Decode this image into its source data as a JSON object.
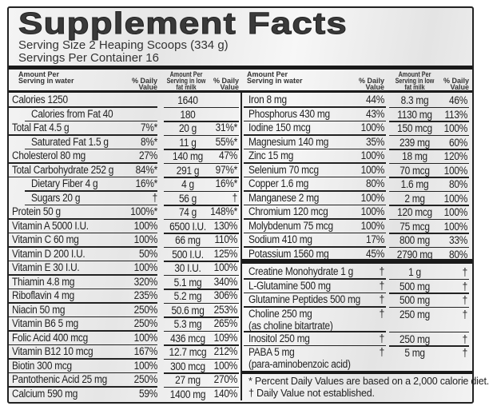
{
  "title": "Supplement Facts",
  "serving_size": "Serving Size 2 Heaping Scoops (334 g)",
  "servings_per_container": "Servings Per Container 16",
  "headers": {
    "amount_water": "Amount Per Serving in water",
    "daily_value": "% Daily Value",
    "amount_milk": "Amount Per Serving in low fat milk"
  },
  "left_rows": [
    {
      "name": "Calories  1250",
      "dv": "",
      "milk": "1640",
      "milk_dv": "",
      "indent": false
    },
    {
      "name": "Calories from Fat  40",
      "dv": "",
      "milk": "180",
      "milk_dv": "",
      "indent": true
    },
    {
      "name": "Total Fat  4.5 g",
      "dv": "7%*",
      "milk": "20 g",
      "milk_dv": "31%*",
      "indent": false
    },
    {
      "name": "Saturated Fat  1.5 g",
      "dv": "8%*",
      "milk": "11 g",
      "milk_dv": "55%*",
      "indent": true
    },
    {
      "name": "Cholesterol  80 mg",
      "dv": "27%",
      "milk": "140 mg",
      "milk_dv": "47%",
      "indent": false
    },
    {
      "name": "Total Carbohydrate  252 g",
      "dv": "84%*",
      "milk": "291 g",
      "milk_dv": "97%*",
      "indent": false
    },
    {
      "name": "Dietary Fiber  4 g",
      "dv": "16%*",
      "milk": "4 g",
      "milk_dv": "16%*",
      "indent": true
    },
    {
      "name": "Sugars  20 g",
      "dv": "†",
      "milk": "56 g",
      "milk_dv": "†",
      "indent": true
    },
    {
      "name": "Protein  50 g",
      "dv": "100%*",
      "milk": "74 g",
      "milk_dv": "148%*",
      "indent": false
    },
    {
      "name": "Vitamin A  5000 I.U.",
      "dv": "100%",
      "milk": "6500 I.U.",
      "milk_dv": "130%",
      "indent": false
    },
    {
      "name": "Vitamin C  60 mg",
      "dv": "100%",
      "milk": "66 mg",
      "milk_dv": "110%",
      "indent": false
    },
    {
      "name": "Vitamin D  200 I.U.",
      "dv": "50%",
      "milk": "500 I.U.",
      "milk_dv": "125%",
      "indent": false
    },
    {
      "name": "Vitamin E  30 I.U.",
      "dv": "100%",
      "milk": "30 I.U.",
      "milk_dv": "100%",
      "indent": false
    },
    {
      "name": "Thiamin  4.8 mg",
      "dv": "320%",
      "milk": "5.1 mg",
      "milk_dv": "340%",
      "indent": false
    },
    {
      "name": "Riboflavin  4 mg",
      "dv": "235%",
      "milk": "5.2 mg",
      "milk_dv": "306%",
      "indent": false
    },
    {
      "name": "Niacin  50 mg",
      "dv": "250%",
      "milk": "50.6 mg",
      "milk_dv": "253%",
      "indent": false
    },
    {
      "name": "Vitamin B6  5 mg",
      "dv": "250%",
      "milk": "5.3 mg",
      "milk_dv": "265%",
      "indent": false
    },
    {
      "name": "Folic Acid  400 mcg",
      "dv": "100%",
      "milk": "436 mcg",
      "milk_dv": "109%",
      "indent": false
    },
    {
      "name": "Vitamin B12  10 mcg",
      "dv": "167%",
      "milk": "12.7 mcg",
      "milk_dv": "212%",
      "indent": false
    },
    {
      "name": "Biotin  300 mcg",
      "dv": "100%",
      "milk": "300 mcg",
      "milk_dv": "100%",
      "indent": false
    },
    {
      "name": "Pantothenic Acid  25 mg",
      "dv": "250%",
      "milk": "27 mg",
      "milk_dv": "270%",
      "indent": false
    },
    {
      "name": "Calcium  590 mg",
      "dv": "59%",
      "milk": "1400 mg",
      "milk_dv": "140%",
      "indent": false
    }
  ],
  "right_rows": [
    {
      "name": "Iron  8 mg",
      "dv": "44%",
      "milk": "8.3 mg",
      "milk_dv": "46%"
    },
    {
      "name": "Phosphorus  430 mg",
      "dv": "43%",
      "milk": "1130 mg",
      "milk_dv": "113%"
    },
    {
      "name": "Iodine  150 mcg",
      "dv": "100%",
      "milk": "150 mcg",
      "milk_dv": "100%"
    },
    {
      "name": "Magnesium  140 mg",
      "dv": "35%",
      "milk": "239 mg",
      "milk_dv": "60%"
    },
    {
      "name": "Zinc  15 mg",
      "dv": "100%",
      "milk": "18 mg",
      "milk_dv": "120%"
    },
    {
      "name": "Selenium  70 mcg",
      "dv": "100%",
      "milk": "70 mcg",
      "milk_dv": "100%"
    },
    {
      "name": "Copper  1.6 mg",
      "dv": "80%",
      "milk": "1.6 mg",
      "milk_dv": "80%"
    },
    {
      "name": "Manganese  2 mg",
      "dv": "100%",
      "milk": "2 mg",
      "milk_dv": "100%"
    },
    {
      "name": "Chromium  120 mcg",
      "dv": "100%",
      "milk": "120 mcg",
      "milk_dv": "100%"
    },
    {
      "name": "Molybdenum  75 mcg",
      "dv": "100%",
      "milk": "75 mcg",
      "milk_dv": "100%"
    },
    {
      "name": "Sodium  410 mg",
      "dv": "17%",
      "milk": "800 mg",
      "milk_dv": "33%"
    },
    {
      "name": "Potassium  1560 mg",
      "dv": "45%",
      "milk": "2790 mg",
      "milk_dv": "80%"
    }
  ],
  "other_rows": [
    {
      "name": "Creatine Monohydrate  1 g",
      "sub": "",
      "dv": "†",
      "milk": "1 g",
      "milk_dv": "†"
    },
    {
      "name": "L-Glutamine  500 mg",
      "sub": "",
      "dv": "†",
      "milk": "500 mg",
      "milk_dv": "†"
    },
    {
      "name": "Glutamine Peptides  500 mg",
      "sub": "",
      "dv": "†",
      "milk": "500 mg",
      "milk_dv": "†"
    },
    {
      "name": "Choline  250 mg",
      "sub": "(as choline bitartrate)",
      "dv": "†",
      "milk": "250 mg",
      "milk_dv": "†"
    },
    {
      "name": "Inositol  250 mg",
      "sub": "",
      "dv": "†",
      "milk": "250 mg",
      "milk_dv": "†"
    },
    {
      "name": "PABA  5 mg",
      "sub": "(para-aminobenzoic acid)",
      "dv": "†",
      "milk": "5 mg",
      "milk_dv": "†"
    }
  ],
  "footnotes": [
    "* Percent Daily Values are based on a 2,000 calorie diet.",
    "† Daily Value not established."
  ]
}
